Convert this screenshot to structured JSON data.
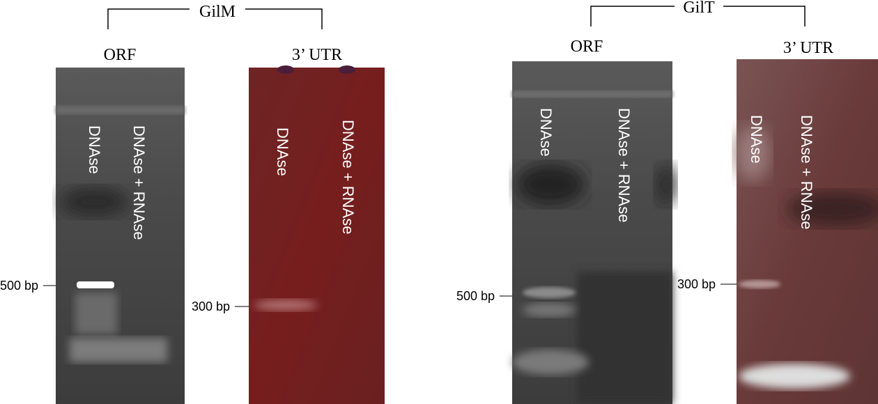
{
  "groups": [
    {
      "title": "GilM",
      "panels": [
        {
          "label": "ORF",
          "lanes": [
            "DNAse",
            "DNAse + RNAse"
          ],
          "marker": "500 bp"
        },
        {
          "label": "3’ UTR",
          "lanes": [
            "DNAse",
            "DNAse + RNAse"
          ],
          "marker": "300 bp"
        }
      ]
    },
    {
      "title": "GilT",
      "panels": [
        {
          "label": "ORF",
          "lanes": [
            "DNAse",
            "DNAse + RNAse"
          ],
          "marker": "500 bp"
        },
        {
          "label": "3’ UTR",
          "lanes": [
            "DNAse",
            "DNAse + RNAse"
          ],
          "marker": "300 bp"
        }
      ]
    }
  ]
}
